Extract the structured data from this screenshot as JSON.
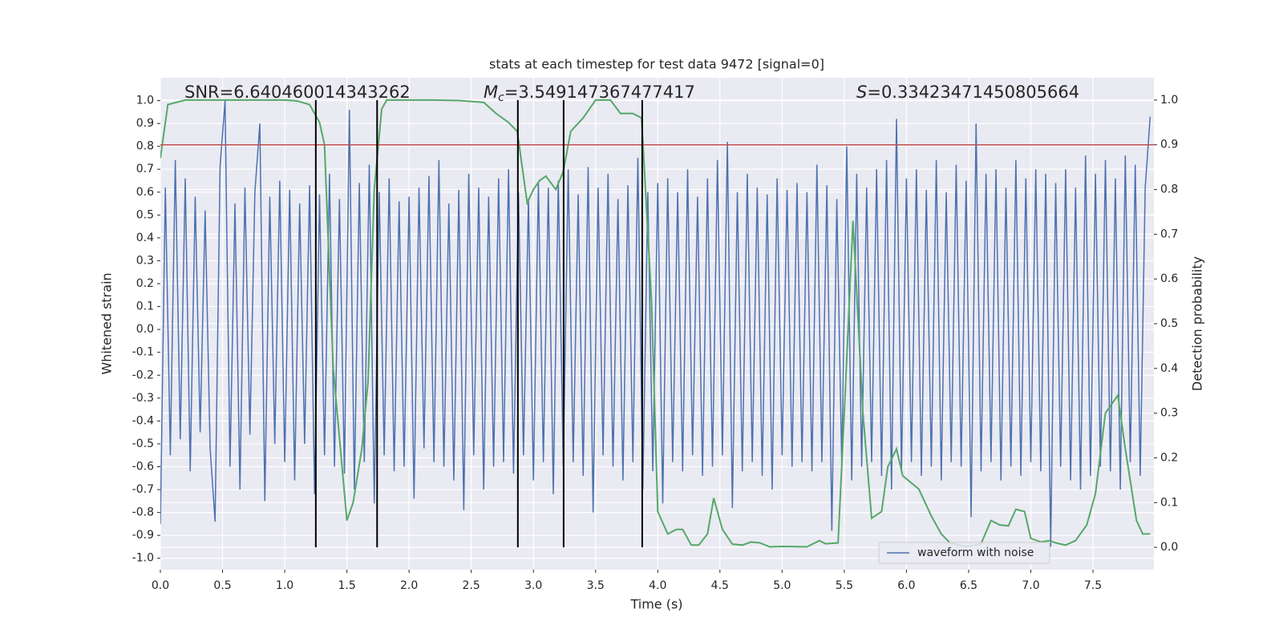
{
  "chart_data": {
    "type": "line",
    "title": "stats at each timestep for test data 9472 [signal=0]",
    "xlabel": "Time (s)",
    "ylabel": "Whitened strain",
    "y2label": "Detection probability",
    "xlim": [
      0,
      7.99
    ],
    "ylim": [
      -1.05,
      1.1
    ],
    "y2lim": [
      -0.05,
      1.05
    ],
    "xticks": [
      {
        "value": 0,
        "label": "0.0"
      },
      0.5,
      {
        "value": 1,
        "label": "1.0"
      },
      1.5,
      {
        "value": 2,
        "label": "2.0"
      },
      2.5,
      {
        "value": 3,
        "label": "3.0"
      },
      3.5,
      {
        "value": 4,
        "label": "4.0"
      },
      4.5,
      {
        "value": 5,
        "label": "5.0"
      },
      5.5,
      {
        "value": 6,
        "label": "6.0"
      },
      6.5,
      {
        "value": 7,
        "label": "7.0"
      },
      7.5
    ],
    "yticks": [
      {
        "value": -1,
        "label": "-1.0"
      },
      -0.9,
      -0.8,
      -0.7,
      -0.6,
      -0.5,
      -0.4,
      -0.3,
      -0.2,
      -0.1,
      {
        "value": 0,
        "label": "0.0"
      },
      0.1,
      0.2,
      0.3,
      0.4,
      0.5,
      0.6,
      0.7,
      0.8,
      0.9,
      {
        "value": 1,
        "label": "1.0"
      }
    ],
    "y2ticks": [
      {
        "value": 0,
        "label": "0.0"
      },
      0.1,
      0.2,
      0.3,
      0.4,
      0.5,
      0.6,
      0.7,
      0.8,
      0.9,
      {
        "value": 1,
        "label": "1.0"
      }
    ],
    "grid": true,
    "legend": "lower right",
    "annotations": [
      {
        "text": "SNR=6.640460014343262"
      },
      {
        "symbol": "M",
        "subscript": "c",
        "text": "=3.549147367477417"
      },
      {
        "symbol": "S",
        "text": "=0.33423471450805664"
      }
    ],
    "series": [
      {
        "name": "waveform with noise",
        "color": "#4c72b0",
        "axis": "y",
        "x": [
          0,
          0.04,
          0.08,
          0.12,
          0.16,
          0.2,
          0.24,
          0.28,
          0.32,
          0.36,
          0.4,
          0.44,
          0.48,
          0.52,
          0.56,
          0.6,
          0.64,
          0.68,
          0.72,
          0.76,
          0.8,
          0.84,
          0.88,
          0.92,
          0.96,
          1.0,
          1.04,
          1.08,
          1.12,
          1.16,
          1.2,
          1.24,
          1.28,
          1.32,
          1.36,
          1.4,
          1.44,
          1.48,
          1.52,
          1.56,
          1.6,
          1.64,
          1.68,
          1.72,
          1.76,
          1.8,
          1.84,
          1.88,
          1.92,
          1.96,
          2.0,
          2.04,
          2.08,
          2.12,
          2.16,
          2.2,
          2.24,
          2.28,
          2.32,
          2.36,
          2.4,
          2.44,
          2.48,
          2.52,
          2.56,
          2.6,
          2.64,
          2.68,
          2.72,
          2.76,
          2.8,
          2.84,
          2.88,
          2.92,
          2.96,
          3.0,
          3.04,
          3.08,
          3.12,
          3.16,
          3.2,
          3.24,
          3.28,
          3.32,
          3.36,
          3.4,
          3.44,
          3.48,
          3.52,
          3.56,
          3.6,
          3.64,
          3.68,
          3.72,
          3.76,
          3.8,
          3.84,
          3.88,
          3.92,
          3.96,
          4.0,
          4.04,
          4.08,
          4.12,
          4.16,
          4.2,
          4.24,
          4.28,
          4.32,
          4.36,
          4.4,
          4.44,
          4.48,
          4.52,
          4.56,
          4.6,
          4.64,
          4.68,
          4.72,
          4.76,
          4.8,
          4.84,
          4.88,
          4.92,
          4.96,
          5.0,
          5.04,
          5.08,
          5.12,
          5.16,
          5.2,
          5.24,
          5.28,
          5.32,
          5.36,
          5.4,
          5.44,
          5.48,
          5.52,
          5.56,
          5.6,
          5.64,
          5.68,
          5.72,
          5.76,
          5.8,
          5.84,
          5.88,
          5.92,
          5.96,
          6.0,
          6.04,
          6.08,
          6.12,
          6.16,
          6.2,
          6.24,
          6.28,
          6.32,
          6.36,
          6.4,
          6.44,
          6.48,
          6.52,
          6.56,
          6.6,
          6.64,
          6.68,
          6.72,
          6.76,
          6.8,
          6.84,
          6.88,
          6.92,
          6.96,
          7.0,
          7.04,
          7.08,
          7.12,
          7.16,
          7.2,
          7.24,
          7.28,
          7.32,
          7.36,
          7.4,
          7.44,
          7.48,
          7.52,
          7.56,
          7.6,
          7.64,
          7.68,
          7.72,
          7.76,
          7.8,
          7.84,
          7.88,
          7.92,
          7.96
        ],
        "values": [
          -0.85,
          0.62,
          -0.55,
          0.74,
          -0.48,
          0.66,
          -0.62,
          0.58,
          -0.45,
          0.52,
          -0.52,
          -0.84,
          0.71,
          1.0,
          -0.6,
          0.55,
          -0.7,
          0.62,
          -0.46,
          0.6,
          0.9,
          -0.75,
          0.58,
          -0.5,
          0.65,
          -0.58,
          0.61,
          -0.66,
          0.55,
          -0.5,
          0.63,
          -0.72,
          0.59,
          -0.55,
          0.68,
          -0.6,
          0.57,
          -0.63,
          0.96,
          -0.7,
          0.64,
          -0.58,
          0.72,
          -0.76,
          0.6,
          -0.55,
          0.66,
          -0.62,
          0.56,
          -0.6,
          0.58,
          -0.74,
          0.62,
          -0.52,
          0.67,
          -0.58,
          0.74,
          -0.6,
          0.55,
          -0.66,
          0.61,
          -0.79,
          0.68,
          -0.55,
          0.62,
          -0.7,
          0.58,
          -0.6,
          0.66,
          -0.58,
          0.7,
          -0.63,
          0.6,
          -0.55,
          0.57,
          -0.66,
          0.64,
          -0.58,
          0.62,
          -0.72,
          0.65,
          -0.6,
          0.7,
          -0.58,
          0.59,
          -0.64,
          0.71,
          -0.8,
          0.62,
          -0.55,
          0.68,
          -0.6,
          0.57,
          -0.66,
          0.63,
          -0.58,
          0.75,
          -0.7,
          0.6,
          -0.62,
          0.64,
          -0.76,
          0.66,
          -0.58,
          0.6,
          -0.62,
          0.7,
          -0.55,
          0.58,
          -0.64,
          0.66,
          -0.6,
          0.74,
          -0.55,
          0.82,
          -0.78,
          0.6,
          -0.62,
          0.68,
          -0.58,
          0.62,
          -0.64,
          0.59,
          -0.7,
          0.66,
          -0.55,
          0.61,
          -0.6,
          0.64,
          -0.58,
          0.6,
          -0.62,
          0.72,
          -0.58,
          0.63,
          -0.88,
          0.57,
          -0.6,
          0.8,
          -0.66,
          0.68,
          -0.6,
          0.62,
          -0.58,
          0.7,
          -0.64,
          0.74,
          -0.7,
          0.92,
          -0.62,
          0.66,
          -0.58,
          0.7,
          -0.64,
          0.61,
          -0.6,
          0.74,
          -0.66,
          0.6,
          -0.58,
          0.72,
          -0.6,
          0.65,
          -0.82,
          0.9,
          -0.62,
          0.68,
          -0.58,
          0.7,
          -0.66,
          0.62,
          -0.6,
          0.74,
          -0.64,
          0.66,
          -0.58,
          0.7,
          -0.62,
          0.68,
          -0.95,
          0.64,
          -0.6,
          0.7,
          -0.66,
          0.62,
          -0.7,
          0.76,
          -0.64,
          0.68,
          -0.6,
          0.74,
          -0.62,
          0.66,
          -0.7,
          0.76,
          -0.58,
          0.72,
          -0.64,
          0.62,
          0.93
        ]
      },
      {
        "color": "#55a868",
        "axis": "y2",
        "x": [
          0,
          0.06,
          0.2,
          0.4,
          0.6,
          0.8,
          1.0,
          1.1,
          1.2,
          1.28,
          1.32,
          1.39,
          1.5,
          1.55,
          1.62,
          1.67,
          1.72,
          1.78,
          1.82,
          2.0,
          2.2,
          2.4,
          2.6,
          2.7,
          2.8,
          2.87,
          2.95,
          3.0,
          3.05,
          3.1,
          3.18,
          3.24,
          3.3,
          3.4,
          3.5,
          3.62,
          3.7,
          3.8,
          3.87,
          3.95,
          4.0,
          4.08,
          4.15,
          4.2,
          4.27,
          4.33,
          4.4,
          4.45,
          4.52,
          4.6,
          4.68,
          4.75,
          4.82,
          4.9,
          5.0,
          5.2,
          5.3,
          5.35,
          5.45,
          5.5,
          5.57,
          5.65,
          5.72,
          5.8,
          5.85,
          5.92,
          5.97,
          6.1,
          6.2,
          6.28,
          6.35,
          6.45,
          6.5,
          6.6,
          6.68,
          6.75,
          6.82,
          6.88,
          6.95,
          7.0,
          7.08,
          7.15,
          7.2,
          7.28,
          7.36,
          7.45,
          7.52,
          7.6,
          7.7,
          7.76,
          7.85,
          7.9,
          7.96
        ],
        "values": [
          0.87,
          0.99,
          1.0,
          1.0,
          1.0,
          1.0,
          1.0,
          0.998,
          0.99,
          0.95,
          0.9,
          0.4,
          0.06,
          0.1,
          0.22,
          0.37,
          0.8,
          0.98,
          1.0,
          1.0,
          1.0,
          0.999,
          0.995,
          0.97,
          0.95,
          0.93,
          0.77,
          0.8,
          0.82,
          0.83,
          0.8,
          0.84,
          0.93,
          0.96,
          1.0,
          1.0,
          0.97,
          0.97,
          0.96,
          0.55,
          0.08,
          0.03,
          0.04,
          0.04,
          0.005,
          0.005,
          0.03,
          0.11,
          0.04,
          0.007,
          0.005,
          0.012,
          0.01,
          0.001,
          0.002,
          0.001,
          0.015,
          0.008,
          0.01,
          0.3,
          0.73,
          0.3,
          0.065,
          0.08,
          0.18,
          0.22,
          0.16,
          0.13,
          0.07,
          0.03,
          0.01,
          0.003,
          0.002,
          0.008,
          0.06,
          0.05,
          0.048,
          0.085,
          0.08,
          0.02,
          0.012,
          0.015,
          0.01,
          0.005,
          0.015,
          0.05,
          0.12,
          0.3,
          0.34,
          0.22,
          0.06,
          0.03,
          0.03
        ]
      }
    ],
    "hlines": [
      {
        "y": 0.9,
        "axis": "y2",
        "color": "#c44e52"
      }
    ],
    "vlines": {
      "x": [
        1.25,
        1.743,
        2.875,
        3.243,
        3.875
      ],
      "ymin": 0,
      "ymax": 1,
      "axis": "y2",
      "color": "#000000"
    }
  }
}
